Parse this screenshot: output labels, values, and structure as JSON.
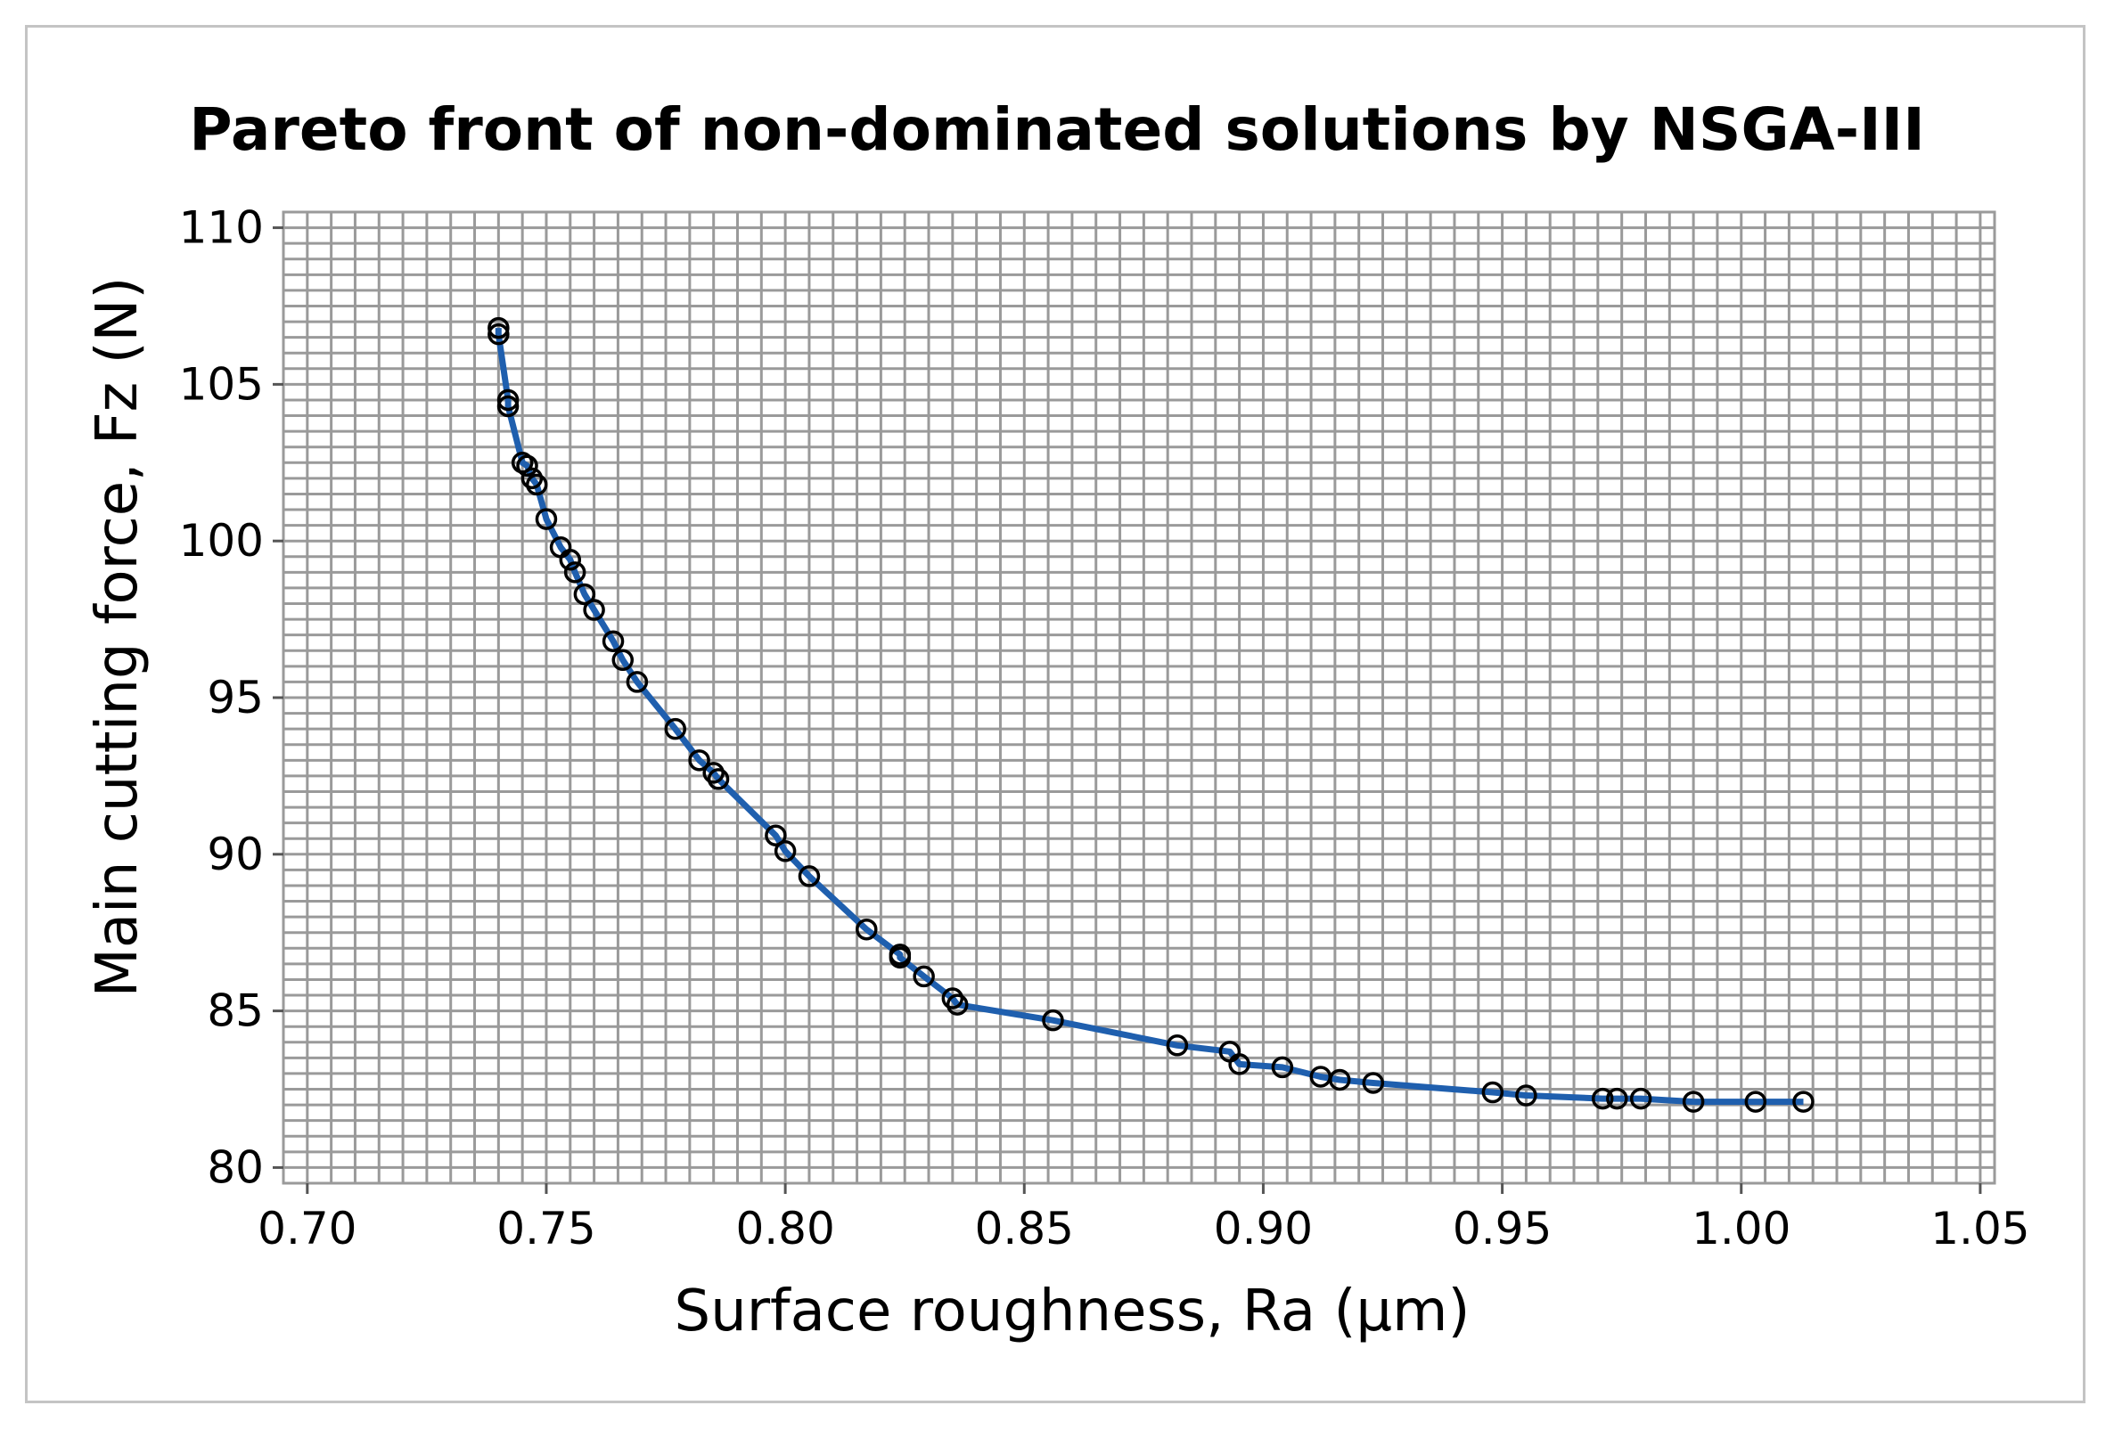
{
  "chart_data": {
    "type": "line",
    "title": "Pareto front of non-dominated solutions by NSGA-III",
    "xlabel": "Surface roughness, Ra (µm)",
    "ylabel": "Main cutting force, Fz (N)",
    "xlim": [
      0.695,
      1.053
    ],
    "ylim": [
      79.5,
      110.5
    ],
    "xticks": [
      0.7,
      0.75,
      0.8,
      0.85,
      0.9,
      0.95,
      1.0,
      1.05
    ],
    "xtick_labels": [
      "0.70",
      "0.75",
      "0.80",
      "0.85",
      "0.90",
      "0.95",
      "1.00",
      "1.05"
    ],
    "yticks": [
      80,
      85,
      90,
      95,
      100,
      105,
      110
    ],
    "ytick_labels": [
      "80",
      "85",
      "90",
      "95",
      "100",
      "105",
      "110"
    ],
    "grid": true,
    "minor_grid_x_step": 0.005,
    "minor_grid_y_step": 0.5,
    "series": [
      {
        "name": "Pareto front",
        "color": "#1f5fae",
        "marker": "open-circle",
        "x": [
          0.74,
          0.74,
          0.742,
          0.742,
          0.745,
          0.746,
          0.747,
          0.748,
          0.75,
          0.753,
          0.755,
          0.756,
          0.758,
          0.76,
          0.764,
          0.766,
          0.769,
          0.777,
          0.782,
          0.785,
          0.786,
          0.798,
          0.8,
          0.805,
          0.817,
          0.824,
          0.824,
          0.829,
          0.835,
          0.836,
          0.856,
          0.882,
          0.893,
          0.895,
          0.904,
          0.912,
          0.916,
          0.923,
          0.948,
          0.955,
          0.971,
          0.974,
          0.979,
          0.99,
          1.003,
          1.013
        ],
        "y": [
          106.8,
          106.6,
          104.5,
          104.3,
          102.5,
          102.4,
          102.0,
          101.8,
          100.7,
          99.8,
          99.4,
          99.0,
          98.3,
          97.8,
          96.8,
          96.2,
          95.5,
          94.0,
          93.0,
          92.6,
          92.4,
          90.6,
          90.1,
          89.3,
          87.6,
          86.8,
          86.7,
          86.1,
          85.4,
          85.2,
          84.7,
          83.9,
          83.7,
          83.3,
          83.2,
          82.9,
          82.8,
          82.7,
          82.4,
          82.3,
          82.2,
          82.2,
          82.2,
          82.1,
          82.1,
          82.1
        ]
      }
    ]
  }
}
